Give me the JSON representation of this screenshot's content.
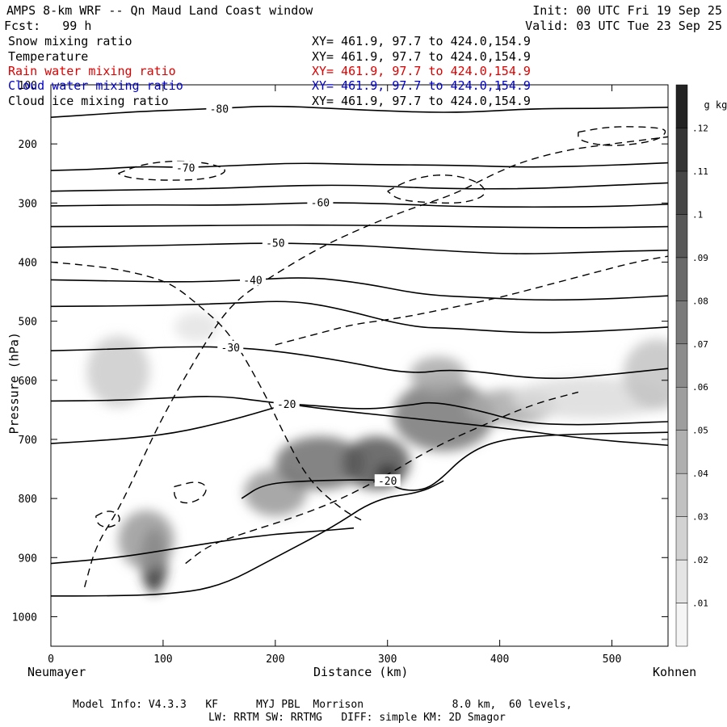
{
  "header": {
    "title": "AMPS 8-km WRF -- Qn Maud Land Coast window",
    "init": "Init: 00 UTC Fri 19 Sep 25",
    "fcst": "Fcst:   99 h",
    "valid": "Valid: 03 UTC Tue 23 Sep 25",
    "fields": [
      {
        "label": "Snow mixing ratio",
        "xy": "XY= 461.9, 97.7 to 424.0,154.9",
        "color": "#000000"
      },
      {
        "label": "Temperature",
        "xy": "XY= 461.9, 97.7 to 424.0,154.9",
        "color": "#000000"
      },
      {
        "label": "Rain water mixing ratio",
        "xy": "XY= 461.9, 97.7 to 424.0,154.9",
        "color": "#dd0000"
      },
      {
        "label": "Cloud water mixing ratio",
        "xy": "XY= 461.9, 97.7 to 424.0,154.9",
        "color": "#0000cc"
      },
      {
        "label": "Cloud ice mixing ratio",
        "xy": "XY= 461.9, 97.7 to 424.0,154.9",
        "color": "#000000"
      }
    ]
  },
  "footer": {
    "line1": "Model Info: V4.3.3   KF      MYJ PBL  Morrison              8.0 km,  60 levels,",
    "line2": "LW: RRTM SW: RRTMG   DIFF: simple KM: 2D Smagor"
  },
  "chart_data": {
    "type": "heatmap",
    "description_free": true,
    "xlabel": "Distance (km)",
    "ylabel": "Pressure (hPa)",
    "x_left_label": "Neumayer",
    "x_right_label": "Kohnen",
    "xlim": [
      0,
      550
    ],
    "ylim": [
      1050,
      100
    ],
    "x_ticks": [
      0,
      100,
      200,
      300,
      400,
      500
    ],
    "y_ticks": [
      100,
      200,
      300,
      400,
      500,
      600,
      700,
      800,
      900,
      1000
    ],
    "colorbar": {
      "unit_label": "g kg",
      "unit_exp": "-1",
      "ticks": [
        ".01",
        ".02",
        ".03",
        ".04",
        ".05",
        ".06",
        ".07",
        ".08",
        ".09",
        ".1",
        ".11",
        ".12"
      ],
      "range": [
        0.005,
        0.13
      ]
    },
    "snow_regions": [
      {
        "x": 92,
        "y": 905,
        "rx": 12,
        "ry": 55,
        "value": 0.12
      },
      {
        "x": 85,
        "y": 870,
        "rx": 25,
        "ry": 50,
        "value": 0.06
      },
      {
        "x": 200,
        "y": 790,
        "rx": 28,
        "ry": 40,
        "value": 0.06
      },
      {
        "x": 240,
        "y": 740,
        "rx": 40,
        "ry": 45,
        "value": 0.085
      },
      {
        "x": 290,
        "y": 740,
        "rx": 30,
        "ry": 45,
        "value": 0.1
      },
      {
        "x": 300,
        "y": 760,
        "rx": 10,
        "ry": 18,
        "value": 0.12
      },
      {
        "x": 350,
        "y": 660,
        "rx": 45,
        "ry": 60,
        "value": 0.08
      },
      {
        "x": 345,
        "y": 590,
        "rx": 25,
        "ry": 30,
        "value": 0.05
      },
      {
        "x": 410,
        "y": 645,
        "rx": 40,
        "ry": 30,
        "value": 0.05
      },
      {
        "x": 480,
        "y": 630,
        "rx": 70,
        "ry": 35,
        "value": 0.02
      },
      {
        "x": 540,
        "y": 590,
        "rx": 30,
        "ry": 60,
        "value": 0.035
      },
      {
        "x": 60,
        "y": 585,
        "rx": 28,
        "ry": 60,
        "value": 0.03
      },
      {
        "x": 130,
        "y": 510,
        "rx": 20,
        "ry": 25,
        "value": 0.015
      }
    ],
    "temperature_contours": [
      {
        "label": "-80",
        "points": [
          [
            0,
            155
          ],
          [
            40,
            150
          ],
          [
            80,
            145
          ],
          [
            150,
            140
          ],
          [
            200,
            135
          ],
          [
            280,
            143
          ],
          [
            360,
            148
          ],
          [
            430,
            140
          ],
          [
            490,
            140
          ],
          [
            550,
            138
          ]
        ]
      },
      {
        "label": "-70",
        "points": [
          [
            0,
            245
          ],
          [
            40,
            243
          ],
          [
            80,
            238
          ],
          [
            120,
            240
          ],
          [
            160,
            237
          ],
          [
            220,
            232
          ],
          [
            280,
            235
          ],
          [
            360,
            236
          ],
          [
            430,
            240
          ],
          [
            500,
            236
          ],
          [
            550,
            232
          ]
        ]
      },
      {
        "label": "",
        "points": [
          [
            0,
            280
          ],
          [
            60,
            278
          ],
          [
            140,
            276
          ],
          [
            220,
            270
          ],
          [
            280,
            270
          ],
          [
            350,
            276
          ],
          [
            430,
            276
          ],
          [
            500,
            270
          ],
          [
            550,
            266
          ]
        ]
      },
      {
        "label": "-60",
        "points": [
          [
            0,
            305
          ],
          [
            80,
            303
          ],
          [
            160,
            304
          ],
          [
            240,
            299
          ],
          [
            300,
            301
          ],
          [
            360,
            306
          ],
          [
            430,
            307
          ],
          [
            500,
            306
          ],
          [
            550,
            302
          ]
        ]
      },
      {
        "label": "",
        "points": [
          [
            0,
            340
          ],
          [
            100,
            339
          ],
          [
            200,
            337
          ],
          [
            300,
            338
          ],
          [
            400,
            341
          ],
          [
            480,
            342
          ],
          [
            550,
            340
          ]
        ]
      },
      {
        "label": "-50",
        "points": [
          [
            0,
            375
          ],
          [
            60,
            373
          ],
          [
            120,
            371
          ],
          [
            200,
            367
          ],
          [
            280,
            372
          ],
          [
            360,
            382
          ],
          [
            420,
            387
          ],
          [
            500,
            382
          ],
          [
            550,
            380
          ]
        ]
      },
      {
        "label": "-40",
        "points": [
          [
            0,
            430
          ],
          [
            60,
            432
          ],
          [
            120,
            434
          ],
          [
            180,
            430
          ],
          [
            230,
            425
          ],
          [
            280,
            436
          ],
          [
            330,
            455
          ],
          [
            380,
            460
          ],
          [
            440,
            465
          ],
          [
            500,
            462
          ],
          [
            550,
            457
          ]
        ]
      },
      {
        "label": "",
        "points": [
          [
            0,
            475
          ],
          [
            80,
            474
          ],
          [
            160,
            470
          ],
          [
            210,
            465
          ],
          [
            250,
            475
          ],
          [
            320,
            510
          ],
          [
            360,
            512
          ],
          [
            420,
            520
          ],
          [
            480,
            518
          ],
          [
            550,
            510
          ]
        ]
      },
      {
        "label": "-30",
        "points": [
          [
            0,
            550
          ],
          [
            60,
            547
          ],
          [
            120,
            543
          ],
          [
            160,
            544
          ],
          [
            200,
            550
          ],
          [
            260,
            567
          ],
          [
            320,
            590
          ],
          [
            360,
            580
          ],
          [
            440,
            600
          ],
          [
            500,
            590
          ],
          [
            550,
            580
          ]
        ]
      },
      {
        "label": "",
        "points": [
          [
            0,
            635
          ],
          [
            60,
            634
          ],
          [
            100,
            630
          ],
          [
            150,
            626
          ],
          [
            190,
            636
          ],
          [
            210,
            640
          ],
          [
            250,
            650
          ],
          [
            300,
            660
          ],
          [
            340,
            668
          ],
          [
            400,
            680
          ],
          [
            480,
            700
          ],
          [
            550,
            710
          ]
        ]
      },
      {
        "label": "-20",
        "points": [
          [
            0,
            707
          ],
          [
            60,
            700
          ],
          [
            110,
            690
          ],
          [
            160,
            668
          ],
          [
            200,
            646
          ],
          [
            210,
            640
          ],
          [
            230,
            642
          ],
          [
            280,
            650
          ],
          [
            320,
            642
          ],
          [
            340,
            636
          ],
          [
            380,
            650
          ],
          [
            420,
            672
          ],
          [
            470,
            676
          ],
          [
            520,
            672
          ],
          [
            550,
            670
          ]
        ]
      },
      {
        "label": "-20",
        "points": [
          [
            170,
            800
          ],
          [
            190,
            775
          ],
          [
            230,
            770
          ],
          [
            280,
            768
          ],
          [
            300,
            770
          ],
          [
            310,
            785
          ],
          [
            330,
            787
          ],
          [
            345,
            772
          ],
          [
            370,
            725
          ],
          [
            400,
            700
          ],
          [
            450,
            692
          ],
          [
            500,
            690
          ],
          [
            550,
            688
          ]
        ]
      },
      {
        "label": "",
        "points": [
          [
            0,
            965
          ],
          [
            40,
            965
          ],
          [
            100,
            963
          ],
          [
            150,
            950
          ],
          [
            200,
            900
          ],
          [
            250,
            850
          ],
          [
            290,
            800
          ],
          [
            330,
            790
          ],
          [
            350,
            770
          ]
        ]
      },
      {
        "label": "",
        "points": [
          [
            0,
            910
          ],
          [
            60,
            900
          ],
          [
            110,
            885
          ],
          [
            160,
            870
          ],
          [
            200,
            860
          ],
          [
            240,
            855
          ],
          [
            270,
            850
          ]
        ]
      }
    ],
    "ice_contours": [
      {
        "points": [
          [
            0,
            400
          ],
          [
            30,
            405
          ],
          [
            60,
            412
          ],
          [
            90,
            425
          ],
          [
            110,
            440
          ],
          [
            130,
            470
          ],
          [
            160,
            520
          ],
          [
            190,
            620
          ],
          [
            210,
            700
          ],
          [
            230,
            770
          ],
          [
            260,
            820
          ],
          [
            280,
            840
          ]
        ]
      },
      {
        "points": [
          [
            30,
            950
          ],
          [
            40,
            880
          ],
          [
            60,
            820
          ],
          [
            80,
            740
          ],
          [
            100,
            660
          ],
          [
            130,
            560
          ],
          [
            160,
            470
          ],
          [
            200,
            420
          ],
          [
            240,
            375
          ],
          [
            280,
            340
          ],
          [
            320,
            310
          ],
          [
            360,
            285
          ],
          [
            390,
            255
          ],
          [
            420,
            230
          ],
          [
            460,
            210
          ],
          [
            500,
            200
          ],
          [
            550,
            188
          ]
        ]
      },
      {
        "points": [
          [
            120,
            910
          ],
          [
            140,
            880
          ],
          [
            170,
            860
          ],
          [
            220,
            830
          ],
          [
            260,
            800
          ],
          [
            300,
            760
          ],
          [
            340,
            715
          ],
          [
            380,
            680
          ],
          [
            430,
            640
          ],
          [
            470,
            620
          ]
        ]
      },
      {
        "points": [
          [
            60,
            250
          ],
          [
            80,
            235
          ],
          [
            110,
            228
          ],
          [
            140,
            232
          ],
          [
            160,
            245
          ],
          [
            140,
            260
          ],
          [
            100,
            262
          ],
          [
            70,
            258
          ],
          [
            60,
            250
          ]
        ]
      },
      {
        "points": [
          [
            470,
            180
          ],
          [
            500,
            170
          ],
          [
            540,
            172
          ],
          [
            550,
            178
          ],
          [
            540,
            195
          ],
          [
            500,
            205
          ],
          [
            470,
            195
          ],
          [
            470,
            180
          ]
        ]
      },
      {
        "points": [
          [
            300,
            280
          ],
          [
            320,
            260
          ],
          [
            350,
            250
          ],
          [
            380,
            262
          ],
          [
            390,
            285
          ],
          [
            370,
            300
          ],
          [
            340,
            300
          ],
          [
            310,
            295
          ],
          [
            300,
            280
          ]
        ]
      },
      {
        "points": [
          [
            200,
            540
          ],
          [
            220,
            530
          ],
          [
            240,
            520
          ],
          [
            270,
            505
          ],
          [
            310,
            495
          ],
          [
            350,
            480
          ],
          [
            400,
            460
          ],
          [
            440,
            440
          ],
          [
            480,
            420
          ],
          [
            520,
            400
          ],
          [
            550,
            390
          ]
        ]
      },
      {
        "points": [
          [
            110,
            780
          ],
          [
            130,
            770
          ],
          [
            140,
            780
          ],
          [
            135,
            800
          ],
          [
            120,
            810
          ],
          [
            110,
            800
          ],
          [
            110,
            780
          ]
        ]
      },
      {
        "points": [
          [
            40,
            830
          ],
          [
            50,
            820
          ],
          [
            60,
            825
          ],
          [
            62,
            840
          ],
          [
            52,
            850
          ],
          [
            42,
            845
          ],
          [
            40,
            830
          ]
        ]
      }
    ]
  }
}
